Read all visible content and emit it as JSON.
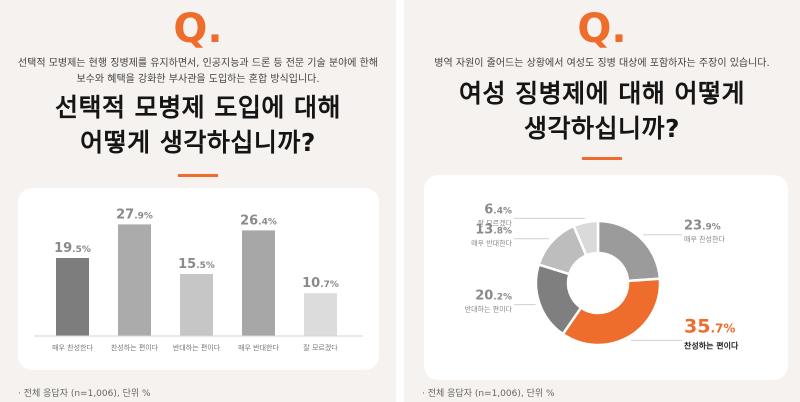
{
  "left": {
    "logo": "Q.",
    "description_lines": [
      "선택적 모병제는 현행 징병제를 유지하면서, 인공지능과 드론 등 전문 기술 분야에 한해",
      "보수와 혜택을 강화한 부사관을 도입하는 혼합 방식입니다."
    ],
    "question_lines": [
      "선택적 모병제 도입에 대해",
      "어떻게 생각하십니까?"
    ],
    "footnote": "· 전체 응답자 (n=1,006), 단위 %"
  },
  "right": {
    "logo": "Q.",
    "description_lines": [
      "병역 자원이 줄어드는 상황에서 여성도 징병 대상에 포함하자는 주장이 있습니다."
    ],
    "question_lines": [
      "여성 징병제에 대해 어떻게",
      "생각하십니까?"
    ],
    "footnote": "· 전체 응답자 (n=1,006), 단위 %"
  },
  "chart_data": [
    {
      "type": "bar",
      "categories": [
        "매우 찬성한다",
        "찬성하는 편이다",
        "반대하는 편이다",
        "매우 반대한다",
        "잘 모르겠다"
      ],
      "values": [
        19.5,
        27.9,
        15.5,
        26.4,
        10.7
      ],
      "unit": "%",
      "colors": [
        "#7d7d7d",
        "#ababab",
        "#c6c6c6",
        "#a7a7a7",
        "#dcdcdc"
      ],
      "label_color": "#8a8a8a",
      "ylim": [
        0,
        30
      ]
    },
    {
      "type": "pie",
      "donut": true,
      "labels": [
        "매우 찬성한다",
        "찬성하는 편이다",
        "반대하는 편이다",
        "매우 반대한다",
        "잘 모르겠다"
      ],
      "values": [
        23.9,
        35.7,
        20.2,
        13.8,
        6.4
      ],
      "unit": "%",
      "colors": [
        "#9b9b9b",
        "#ee6d2d",
        "#7f7f7f",
        "#bdbdbd",
        "#dadada"
      ],
      "highlight": "찬성하는 편이다",
      "highlight_color": "#ee6d2d",
      "label_color": "#8a8a8a"
    }
  ]
}
